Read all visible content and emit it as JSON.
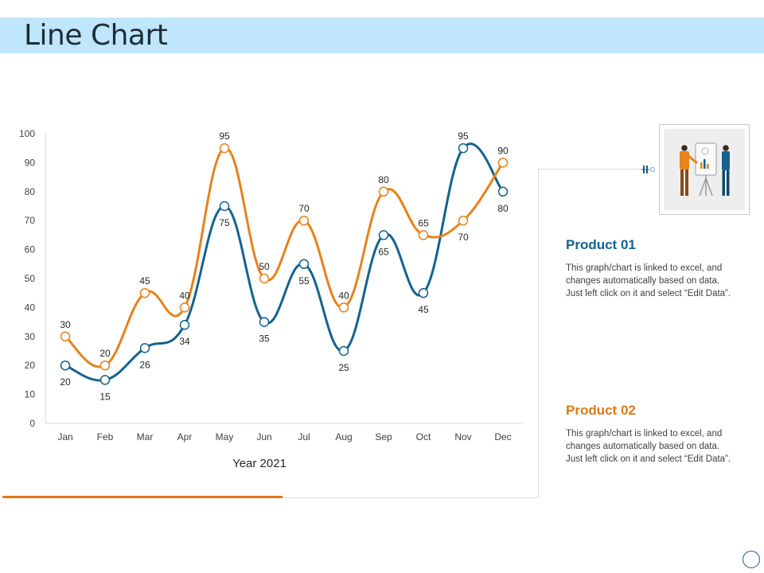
{
  "page": {
    "title": "Line Chart"
  },
  "chart_data": {
    "type": "line",
    "categories": [
      "Jan",
      "Feb",
      "Mar",
      "Apr",
      "May",
      "Jun",
      "Jul",
      "Aug",
      "Sep",
      "Oct",
      "Nov",
      "Dec"
    ],
    "series": [
      {
        "name": "Product 01",
        "color": "#14628e",
        "values": [
          20,
          15,
          26,
          34,
          75,
          35,
          55,
          25,
          65,
          45,
          95,
          80
        ]
      },
      {
        "name": "Product 02",
        "color": "#e8821a",
        "values": [
          30,
          20,
          45,
          40,
          95,
          50,
          70,
          40,
          80,
          65,
          70,
          90
        ]
      }
    ],
    "yticks": [
      0,
      10,
      20,
      30,
      40,
      50,
      60,
      70,
      80,
      90,
      100
    ],
    "ylim": [
      0,
      100
    ],
    "xlabel": "Year 2021",
    "ylabel": "",
    "title": "",
    "grid": false
  },
  "legend_panel": {
    "product1": {
      "title": "Product 01",
      "color": "#14628e",
      "description": "This graph/chart is linked to excel, and changes automatically based on data. Just left click on it and select “Edit Data”."
    },
    "product2": {
      "title": "Product 02",
      "color": "#e07b12",
      "description": "This graph/chart is linked to excel, and changes automatically based on data. Just left click on it and select “Edit Data”."
    }
  },
  "illustration": {
    "icon": "presentation-people-icon"
  }
}
